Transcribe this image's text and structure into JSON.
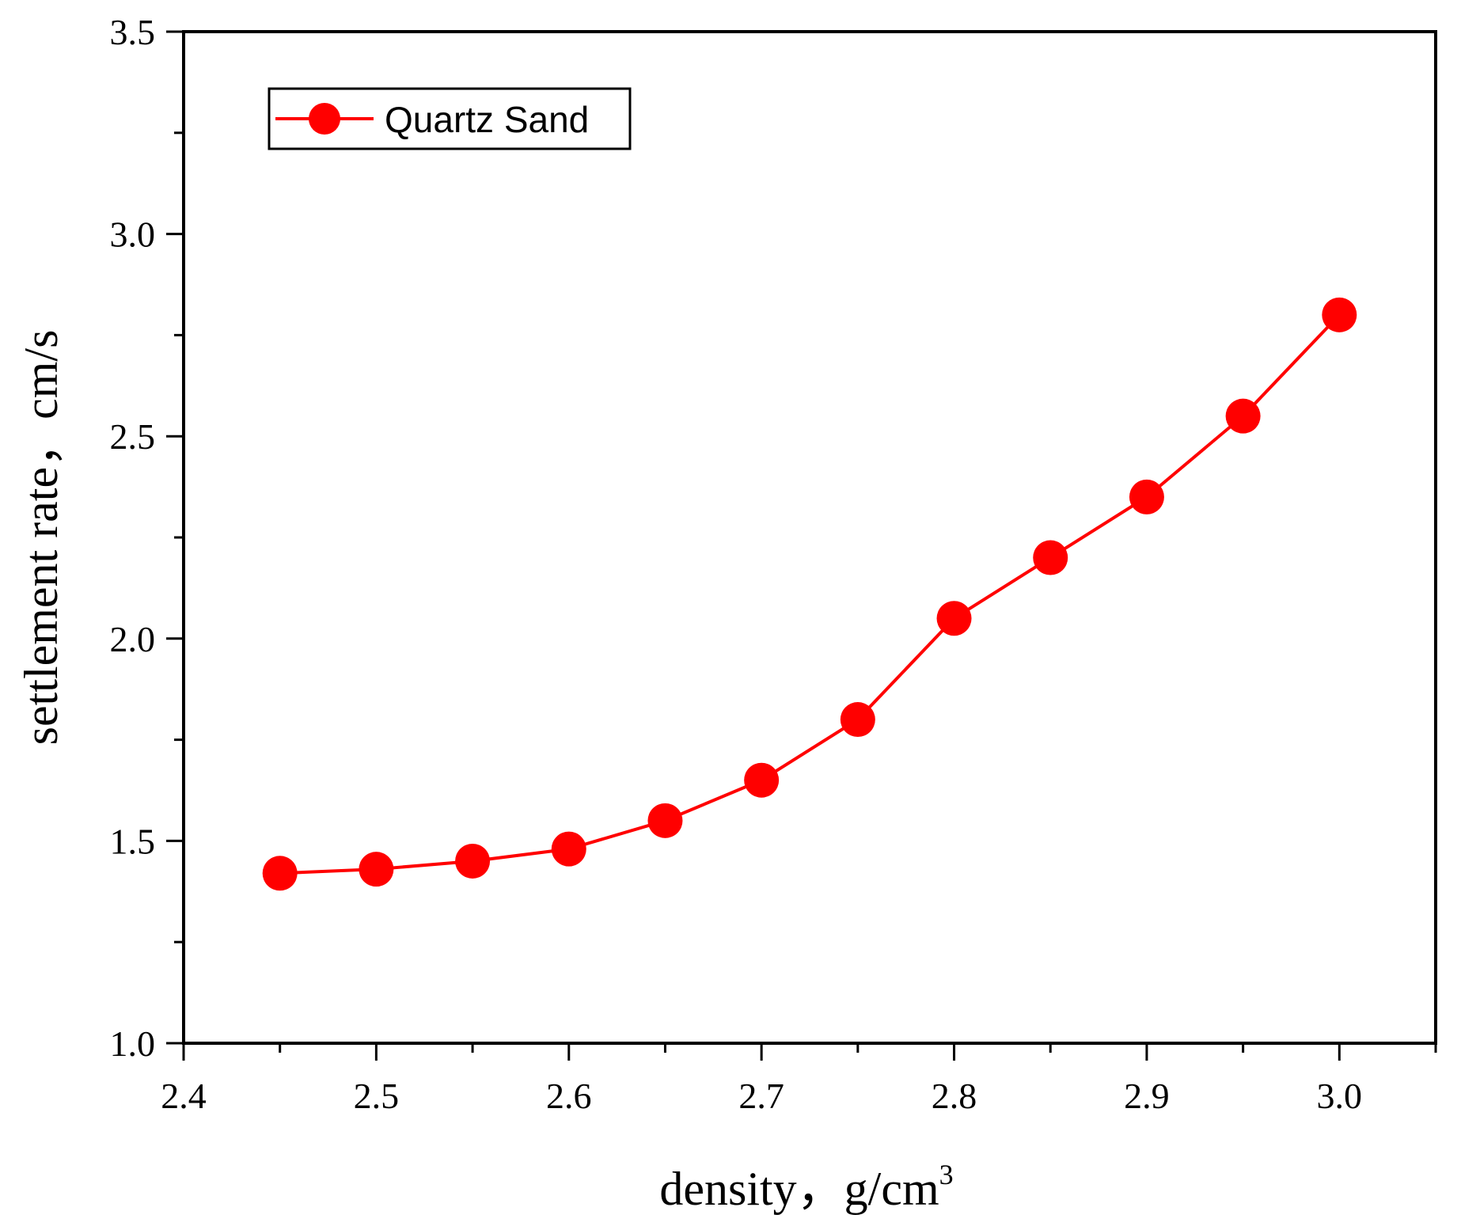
{
  "chart_data": {
    "type": "line",
    "title": "",
    "xlabel": "density，g/cm",
    "xlabel_sup": "3",
    "ylabel": "settlement rate，cm/s",
    "xlim": [
      2.4,
      3.05
    ],
    "ylim": [
      1.0,
      3.5
    ],
    "xticks": [
      "2.4",
      "2.5",
      "2.6",
      "2.7",
      "2.8",
      "2.9",
      "3.0"
    ],
    "yticks": [
      "1.0",
      "1.5",
      "2.0",
      "2.5",
      "3.0",
      "3.5"
    ],
    "grid": false,
    "legend_position": "top-left",
    "series": [
      {
        "name": "Quartz Sand",
        "color": "#ff0000",
        "marker": "circle",
        "x": [
          2.45,
          2.5,
          2.55,
          2.6,
          2.65,
          2.7,
          2.75,
          2.8,
          2.85,
          2.9,
          2.95,
          3.0
        ],
        "y": [
          1.42,
          1.43,
          1.45,
          1.48,
          1.55,
          1.65,
          1.8,
          2.05,
          2.2,
          2.35,
          2.55,
          2.8
        ]
      }
    ]
  }
}
